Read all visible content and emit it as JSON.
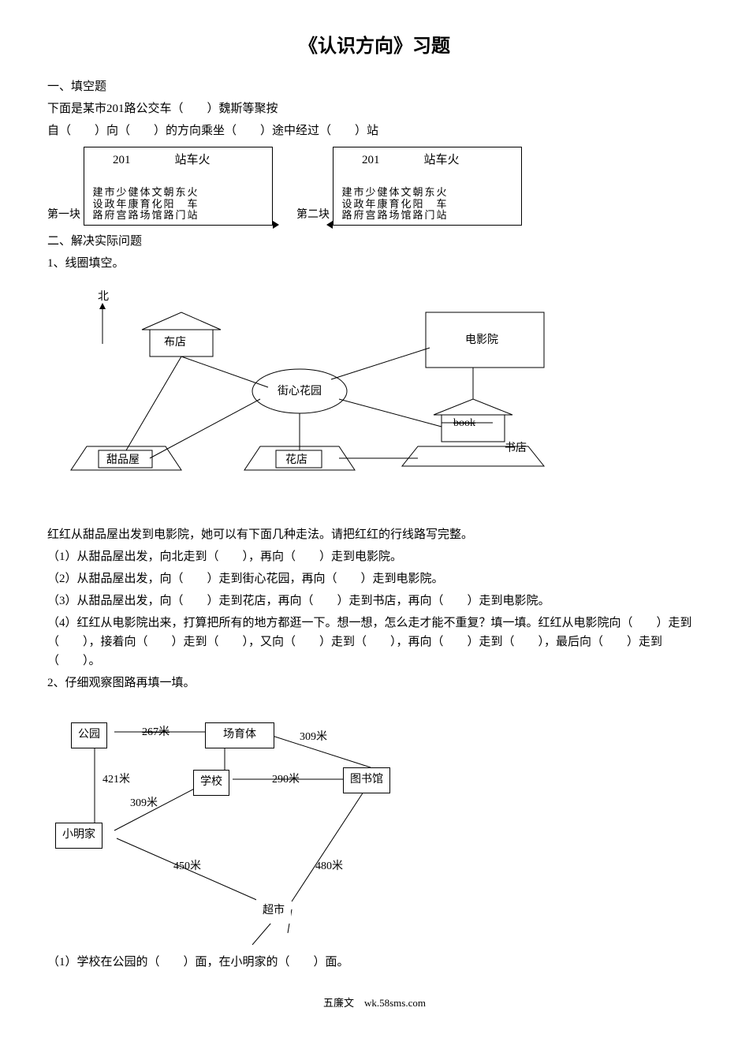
{
  "title": "《认识方向》习题",
  "s1": {
    "head": "一、填空题",
    "intro": "下面是某市201路公交车（　　）魏斯等聚按",
    "line2": "自（　　）向（　　）的方向乘坐（　　）途中经过（　　）站"
  },
  "bus": {
    "route": "201",
    "station_label": "站车火",
    "cols": [
      [
        "建",
        "设",
        "路"
      ],
      [
        "市",
        "政",
        "府"
      ],
      [
        "少",
        "年",
        "宫"
      ],
      [
        "健",
        "康",
        "路"
      ],
      [
        "体",
        "育",
        "场"
      ],
      [
        "文",
        "化",
        "馆"
      ],
      [
        "朝",
        "阳",
        "路"
      ],
      [
        "东",
        "",
        "门"
      ],
      [
        "火",
        "车",
        "站"
      ]
    ],
    "label1": "第一块",
    "label2": "第二块"
  },
  "s2": {
    "head": "二、解决实际问题",
    "q1": "1、线圈填空。"
  },
  "d1": {
    "north": "北",
    "cloth": "布店",
    "garden": "街心花园",
    "cinema": "电影院",
    "dessert": "甜品屋",
    "flower": "花店",
    "book_en": "book",
    "bookstore": "书店"
  },
  "q1text": {
    "intro": "红红从甜品屋出发到电影院，她可以有下面几种走法。请把红红的行线路写完整。",
    "a": "（1）从甜品屋出发，向北走到（　　），再向（　　）走到电影院。",
    "b": "（2）从甜品屋出发，向（　　）走到街心花园，再向（　　）走到电影院。",
    "c": "（3）从甜品屋出发，向（　　）走到花店，再向（　　）走到书店，再向（　　）走到电影院。",
    "d": "（4）红红从电影院出来，打算把所有的地方都逛一下。想一想，怎么走才能不重复？填一填。红红从电影院向（　　）走到（　　），接着向（　　）走到（　　），又向（　　）走到（　　），再向（　　）走到（　　），最后向（　　）走到（　　）。"
  },
  "q2": "2、仔细观察图路再填一填。",
  "d2": {
    "park": "公园",
    "stadium": "场育体",
    "school": "学校",
    "library": "图书馆",
    "home": "小明家",
    "market": "超市",
    "m267": "267米",
    "m309a": "309米",
    "m421": "421米",
    "m290": "290米",
    "m309b": "309米",
    "m450": "450米",
    "m480": "480米"
  },
  "q2a": "（1）学校在公园的（　　）面，在小明家的（　　）面。",
  "footer": "五廉文　wk.58sms.com"
}
